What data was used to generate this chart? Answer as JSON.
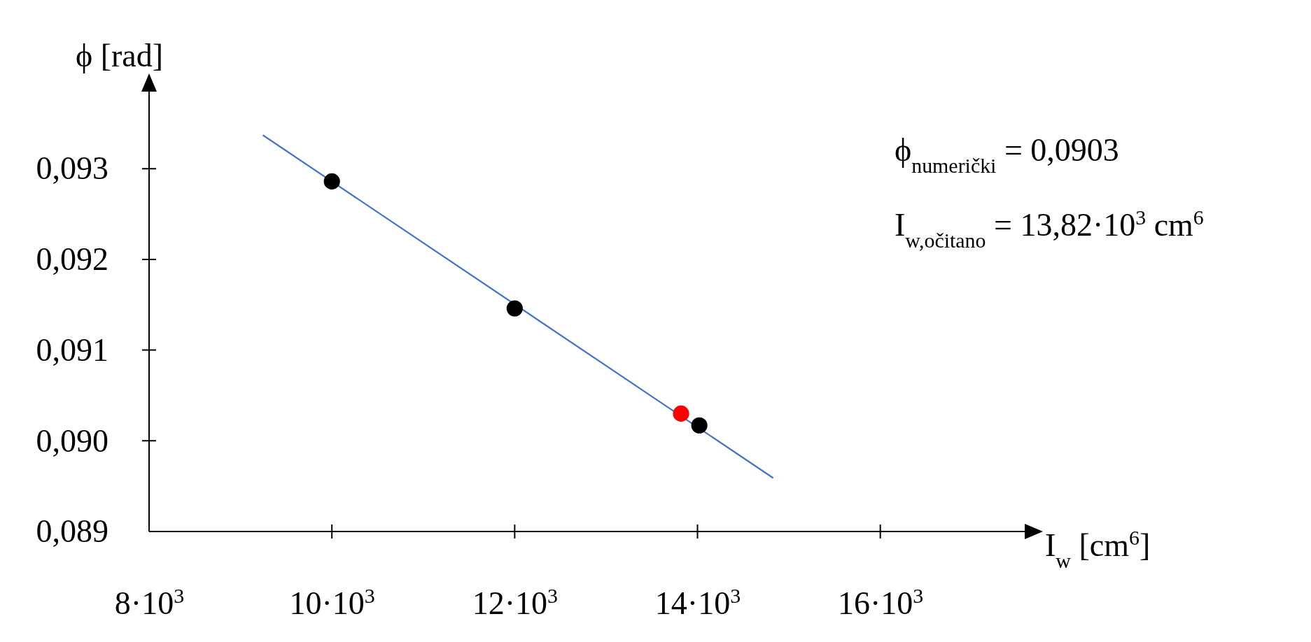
{
  "chart_data": {
    "type": "scatter",
    "xlabel": "I$_{w}$ [cm$^{6}$]",
    "ylabel": "ϕ [rad]",
    "xlim": [
      8000,
      17580
    ],
    "ylim": [
      0.089,
      0.09385
    ],
    "xticks": [
      {
        "value": 8000,
        "label": "8·10$^{3}$"
      },
      {
        "value": 10000,
        "label": "10·10$^{3}$"
      },
      {
        "value": 12000,
        "label": "12·10$^{3}$"
      },
      {
        "value": 14000,
        "label": "14·10$^{3}$"
      },
      {
        "value": 16000,
        "label": "16·10$^{3}$"
      }
    ],
    "yticks": [
      {
        "value": 0.089,
        "label": "0,089"
      },
      {
        "value": 0.09,
        "label": "0,090"
      },
      {
        "value": 0.091,
        "label": "0,091"
      },
      {
        "value": 0.092,
        "label": "0,092"
      },
      {
        "value": 0.093,
        "label": "0,093"
      }
    ],
    "grid": false,
    "series": [
      {
        "type": "line",
        "color": "#4472c4",
        "x": [
          9245,
          14828
        ],
        "values": [
          0.09337,
          0.08959
        ]
      },
      {
        "marker": "circle",
        "color": "#000000",
        "x": [
          10000,
          12000,
          14020
        ],
        "values": [
          0.09286,
          0.09146,
          0.09017
        ]
      },
      {
        "marker": "circle",
        "color": "#ff0000",
        "x": [
          13820
        ],
        "values": [
          0.0903
        ]
      }
    ],
    "annotations": [
      "ϕ$_{numerički}$ = 0,0903",
      "I$_{w,očitano}$ = 13,82·10$^{3}$ cm$^{6}$"
    ]
  }
}
